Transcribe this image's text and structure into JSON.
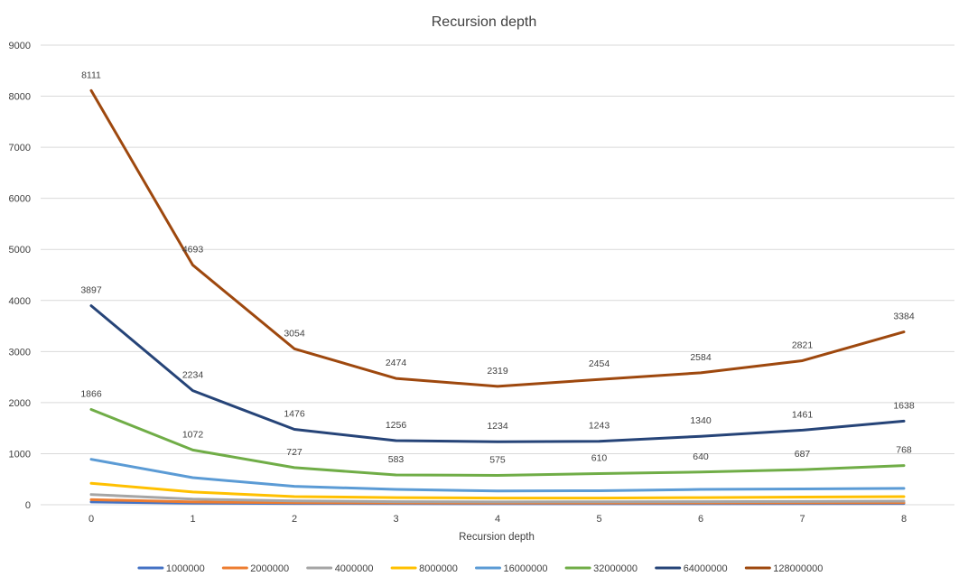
{
  "chart_data": {
    "type": "line",
    "title": "Recursion depth",
    "xlabel": "Recursion depth",
    "ylabel": "",
    "ylim": [
      0,
      9000
    ],
    "yticks": [
      0,
      1000,
      2000,
      3000,
      4000,
      5000,
      6000,
      7000,
      8000,
      9000
    ],
    "categories": [
      "0",
      "1",
      "2",
      "3",
      "4",
      "5",
      "6",
      "7",
      "8"
    ],
    "grid": true,
    "legend_position": "bottom",
    "series": [
      {
        "name": "1000000",
        "color": "#4472c4",
        "values": [
          55,
          30,
          25,
          22,
          20,
          20,
          20,
          22,
          24
        ],
        "labels_shown": false
      },
      {
        "name": "2000000",
        "color": "#ed7d31",
        "values": [
          100,
          55,
          40,
          35,
          33,
          33,
          35,
          37,
          40
        ],
        "labels_shown": false
      },
      {
        "name": "4000000",
        "color": "#a5a5a5",
        "values": [
          200,
          110,
          75,
          60,
          55,
          57,
          60,
          65,
          70
        ],
        "labels_shown": false
      },
      {
        "name": "8000000",
        "color": "#ffc000",
        "values": [
          420,
          250,
          160,
          140,
          130,
          130,
          140,
          150,
          160
        ],
        "labels_shown": false
      },
      {
        "name": "16000000",
        "color": "#5b9bd5",
        "values": [
          890,
          530,
          360,
          300,
          270,
          275,
          300,
          310,
          320
        ],
        "labels_shown": false
      },
      {
        "name": "32000000",
        "color": "#70ad47",
        "values": [
          1866,
          1072,
          727,
          583,
          575,
          610,
          640,
          687,
          768
        ],
        "labels_shown": true
      },
      {
        "name": "64000000",
        "color": "#264478",
        "values": [
          3897,
          2234,
          1476,
          1256,
          1234,
          1243,
          1340,
          1461,
          1638
        ],
        "labels_shown": true
      },
      {
        "name": "128000000",
        "color": "#9e480e",
        "values": [
          8111,
          4693,
          3054,
          2474,
          2319,
          2454,
          2584,
          2821,
          3384
        ],
        "labels_shown": true
      }
    ]
  }
}
